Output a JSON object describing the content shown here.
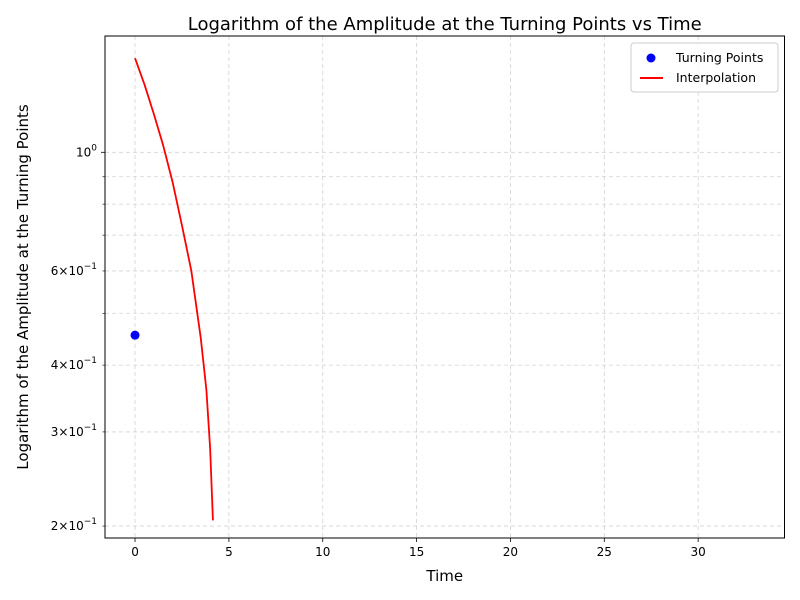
{
  "chart_data": {
    "type": "scatter",
    "title": "Logarithm of the Amplitude at the Turning Points vs Time",
    "xlabel": "Time",
    "ylabel": "Logarithm of the Amplitude at the Turning Points",
    "xlim": [
      -1.6,
      34.6
    ],
    "ylim": [
      0.19,
      1.65
    ],
    "yscale": "log",
    "grid": true,
    "legend_position": "top-right",
    "x_ticks": [
      0,
      5,
      10,
      15,
      20,
      25,
      30
    ],
    "x_tick_labels": [
      "0",
      "5",
      "10",
      "15",
      "20",
      "25",
      "30"
    ],
    "y_major_ticks": [
      1.0
    ],
    "y_major_labels": [
      "10^0"
    ],
    "y_minor_ticks": [
      0.2,
      0.3,
      0.4,
      0.5,
      0.6,
      0.7,
      0.8,
      0.9
    ],
    "y_minor_labels": [
      {
        "value": 0.2,
        "mantissa": "2",
        "base": "10",
        "exp": "−1"
      },
      {
        "value": 0.3,
        "mantissa": "3",
        "base": "10",
        "exp": "−1"
      },
      {
        "value": 0.4,
        "mantissa": "4",
        "base": "10",
        "exp": "−1"
      },
      {
        "value": 0.6,
        "mantissa": "6",
        "base": "10",
        "exp": "−1"
      }
    ],
    "series": [
      {
        "name": "Turning Points",
        "kind": "scatter",
        "color": "#0000ff",
        "points": [
          {
            "x": 0.0,
            "y": 0.455
          }
        ]
      },
      {
        "name": "Interpolation",
        "kind": "line",
        "color": "#ff0000",
        "points": [
          {
            "x": 0.0,
            "y": 1.5
          },
          {
            "x": 0.5,
            "y": 1.34
          },
          {
            "x": 1.0,
            "y": 1.18
          },
          {
            "x": 1.5,
            "y": 1.03
          },
          {
            "x": 2.0,
            "y": 0.88
          },
          {
            "x": 2.5,
            "y": 0.73
          },
          {
            "x": 3.0,
            "y": 0.6
          },
          {
            "x": 3.5,
            "y": 0.45
          },
          {
            "x": 3.8,
            "y": 0.36
          },
          {
            "x": 4.0,
            "y": 0.28
          },
          {
            "x": 4.15,
            "y": 0.205
          }
        ]
      }
    ]
  }
}
